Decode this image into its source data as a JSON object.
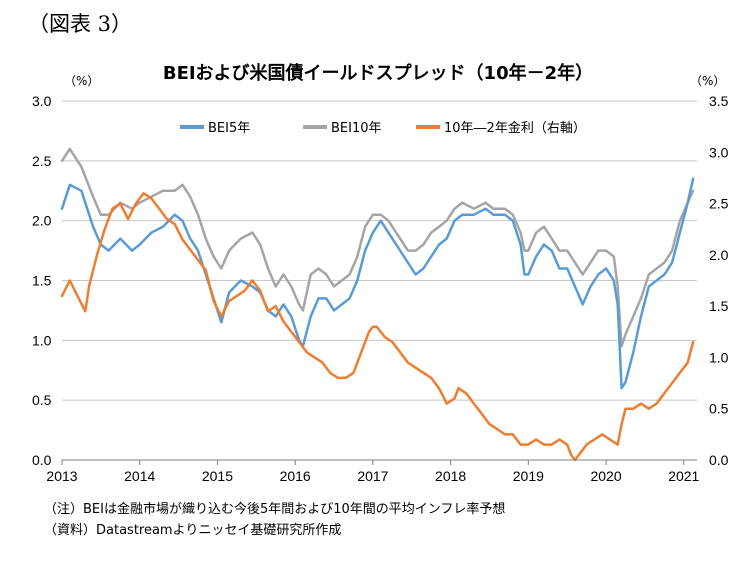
{
  "figure_label": "（図表 3）",
  "chart_data": {
    "type": "line",
    "title": "BEIおよび米国債イールドスプレッド（10年－2年）",
    "left_unit": "（%）",
    "right_unit": "（%）",
    "xlabel": "",
    "ylabel": "",
    "x_ticks": [
      "2013",
      "2014",
      "2015",
      "2016",
      "2017",
      "2018",
      "2019",
      "2020",
      "2021"
    ],
    "x_range": [
      2013.0,
      2021.17
    ],
    "ylim_left": [
      0.0,
      3.0
    ],
    "y_ticks_left": [
      "0.0",
      "0.5",
      "1.0",
      "1.5",
      "2.0",
      "2.5",
      "3.0"
    ],
    "ylim_right": [
      0.0,
      3.5
    ],
    "y_ticks_right": [
      "0.0",
      "0.5",
      "1.0",
      "1.5",
      "2.0",
      "2.5",
      "3.0",
      "3.5"
    ],
    "grid": true,
    "legend_position": "top",
    "series": [
      {
        "name": "BEI5年",
        "axis": "left",
        "color": "#5b9bd5",
        "points": [
          [
            2013.0,
            2.1
          ],
          [
            2013.1,
            2.3
          ],
          [
            2013.25,
            2.25
          ],
          [
            2013.4,
            1.95
          ],
          [
            2013.5,
            1.8
          ],
          [
            2013.6,
            1.75
          ],
          [
            2013.75,
            1.85
          ],
          [
            2013.9,
            1.75
          ],
          [
            2014.0,
            1.8
          ],
          [
            2014.15,
            1.9
          ],
          [
            2014.3,
            1.95
          ],
          [
            2014.45,
            2.05
          ],
          [
            2014.55,
            2.0
          ],
          [
            2014.65,
            1.85
          ],
          [
            2014.75,
            1.75
          ],
          [
            2014.85,
            1.55
          ],
          [
            2014.95,
            1.35
          ],
          [
            2015.05,
            1.15
          ],
          [
            2015.15,
            1.4
          ],
          [
            2015.3,
            1.5
          ],
          [
            2015.45,
            1.45
          ],
          [
            2015.55,
            1.4
          ],
          [
            2015.65,
            1.25
          ],
          [
            2015.75,
            1.2
          ],
          [
            2015.85,
            1.3
          ],
          [
            2015.95,
            1.2
          ],
          [
            2016.05,
            1.0
          ],
          [
            2016.1,
            0.95
          ],
          [
            2016.2,
            1.2
          ],
          [
            2016.3,
            1.35
          ],
          [
            2016.4,
            1.35
          ],
          [
            2016.5,
            1.25
          ],
          [
            2016.6,
            1.3
          ],
          [
            2016.7,
            1.35
          ],
          [
            2016.8,
            1.5
          ],
          [
            2016.9,
            1.75
          ],
          [
            2017.0,
            1.9
          ],
          [
            2017.1,
            2.0
          ],
          [
            2017.2,
            1.9
          ],
          [
            2017.35,
            1.75
          ],
          [
            2017.45,
            1.65
          ],
          [
            2017.55,
            1.55
          ],
          [
            2017.65,
            1.6
          ],
          [
            2017.75,
            1.7
          ],
          [
            2017.85,
            1.8
          ],
          [
            2017.95,
            1.85
          ],
          [
            2018.05,
            2.0
          ],
          [
            2018.15,
            2.05
          ],
          [
            2018.3,
            2.05
          ],
          [
            2018.45,
            2.1
          ],
          [
            2018.55,
            2.05
          ],
          [
            2018.7,
            2.05
          ],
          [
            2018.8,
            2.0
          ],
          [
            2018.9,
            1.8
          ],
          [
            2018.95,
            1.55
          ],
          [
            2019.0,
            1.55
          ],
          [
            2019.1,
            1.7
          ],
          [
            2019.2,
            1.8
          ],
          [
            2019.3,
            1.75
          ],
          [
            2019.4,
            1.6
          ],
          [
            2019.5,
            1.6
          ],
          [
            2019.6,
            1.45
          ],
          [
            2019.7,
            1.3
          ],
          [
            2019.8,
            1.45
          ],
          [
            2019.9,
            1.55
          ],
          [
            2020.0,
            1.6
          ],
          [
            2020.1,
            1.5
          ],
          [
            2020.15,
            1.3
          ],
          [
            2020.2,
            0.6
          ],
          [
            2020.25,
            0.65
          ],
          [
            2020.35,
            0.9
          ],
          [
            2020.45,
            1.2
          ],
          [
            2020.55,
            1.45
          ],
          [
            2020.65,
            1.5
          ],
          [
            2020.75,
            1.55
          ],
          [
            2020.85,
            1.65
          ],
          [
            2020.95,
            1.9
          ],
          [
            2021.05,
            2.15
          ],
          [
            2021.12,
            2.35
          ]
        ]
      },
      {
        "name": "BEI10年",
        "axis": "left",
        "color": "#a5a5a5",
        "points": [
          [
            2013.0,
            2.5
          ],
          [
            2013.1,
            2.6
          ],
          [
            2013.25,
            2.45
          ],
          [
            2013.4,
            2.2
          ],
          [
            2013.5,
            2.05
          ],
          [
            2013.6,
            2.05
          ],
          [
            2013.75,
            2.15
          ],
          [
            2013.9,
            2.1
          ],
          [
            2014.0,
            2.15
          ],
          [
            2014.15,
            2.2
          ],
          [
            2014.3,
            2.25
          ],
          [
            2014.45,
            2.25
          ],
          [
            2014.55,
            2.3
          ],
          [
            2014.65,
            2.2
          ],
          [
            2014.75,
            2.05
          ],
          [
            2014.85,
            1.85
          ],
          [
            2014.95,
            1.7
          ],
          [
            2015.05,
            1.6
          ],
          [
            2015.15,
            1.75
          ],
          [
            2015.3,
            1.85
          ],
          [
            2015.45,
            1.9
          ],
          [
            2015.55,
            1.8
          ],
          [
            2015.65,
            1.6
          ],
          [
            2015.75,
            1.45
          ],
          [
            2015.85,
            1.55
          ],
          [
            2015.95,
            1.45
          ],
          [
            2016.05,
            1.3
          ],
          [
            2016.1,
            1.25
          ],
          [
            2016.2,
            1.55
          ],
          [
            2016.3,
            1.6
          ],
          [
            2016.4,
            1.55
          ],
          [
            2016.5,
            1.45
          ],
          [
            2016.6,
            1.5
          ],
          [
            2016.7,
            1.55
          ],
          [
            2016.8,
            1.7
          ],
          [
            2016.9,
            1.95
          ],
          [
            2017.0,
            2.05
          ],
          [
            2017.1,
            2.05
          ],
          [
            2017.2,
            2.0
          ],
          [
            2017.35,
            1.85
          ],
          [
            2017.45,
            1.75
          ],
          [
            2017.55,
            1.75
          ],
          [
            2017.65,
            1.8
          ],
          [
            2017.75,
            1.9
          ],
          [
            2017.85,
            1.95
          ],
          [
            2017.95,
            2.0
          ],
          [
            2018.05,
            2.1
          ],
          [
            2018.15,
            2.15
          ],
          [
            2018.3,
            2.1
          ],
          [
            2018.45,
            2.15
          ],
          [
            2018.55,
            2.1
          ],
          [
            2018.7,
            2.1
          ],
          [
            2018.8,
            2.05
          ],
          [
            2018.9,
            1.9
          ],
          [
            2018.95,
            1.75
          ],
          [
            2019.0,
            1.75
          ],
          [
            2019.1,
            1.9
          ],
          [
            2019.2,
            1.95
          ],
          [
            2019.3,
            1.85
          ],
          [
            2019.4,
            1.75
          ],
          [
            2019.5,
            1.75
          ],
          [
            2019.6,
            1.65
          ],
          [
            2019.7,
            1.55
          ],
          [
            2019.8,
            1.65
          ],
          [
            2019.9,
            1.75
          ],
          [
            2020.0,
            1.75
          ],
          [
            2020.1,
            1.7
          ],
          [
            2020.15,
            1.45
          ],
          [
            2020.2,
            0.95
          ],
          [
            2020.25,
            1.05
          ],
          [
            2020.35,
            1.2
          ],
          [
            2020.45,
            1.35
          ],
          [
            2020.55,
            1.55
          ],
          [
            2020.65,
            1.6
          ],
          [
            2020.75,
            1.65
          ],
          [
            2020.85,
            1.75
          ],
          [
            2020.95,
            2.0
          ],
          [
            2021.05,
            2.15
          ],
          [
            2021.12,
            2.25
          ]
        ]
      },
      {
        "name": "10年―2年金利（右軸）",
        "axis": "right",
        "color": "#ed7d31",
        "points": [
          [
            2013.0,
            1.6
          ],
          [
            2013.1,
            1.75
          ],
          [
            2013.2,
            1.6
          ],
          [
            2013.3,
            1.45
          ],
          [
            2013.35,
            1.7
          ],
          [
            2013.45,
            2.0
          ],
          [
            2013.55,
            2.25
          ],
          [
            2013.65,
            2.45
          ],
          [
            2013.75,
            2.5
          ],
          [
            2013.85,
            2.35
          ],
          [
            2013.95,
            2.5
          ],
          [
            2014.05,
            2.6
          ],
          [
            2014.15,
            2.55
          ],
          [
            2014.25,
            2.45
          ],
          [
            2014.35,
            2.35
          ],
          [
            2014.45,
            2.3
          ],
          [
            2014.55,
            2.15
          ],
          [
            2014.65,
            2.05
          ],
          [
            2014.75,
            1.95
          ],
          [
            2014.85,
            1.85
          ],
          [
            2014.95,
            1.55
          ],
          [
            2015.05,
            1.4
          ],
          [
            2015.15,
            1.55
          ],
          [
            2015.25,
            1.6
          ],
          [
            2015.35,
            1.65
          ],
          [
            2015.45,
            1.75
          ],
          [
            2015.55,
            1.65
          ],
          [
            2015.65,
            1.45
          ],
          [
            2015.75,
            1.5
          ],
          [
            2015.85,
            1.35
          ],
          [
            2015.95,
            1.25
          ],
          [
            2016.05,
            1.15
          ],
          [
            2016.15,
            1.05
          ],
          [
            2016.25,
            1.0
          ],
          [
            2016.35,
            0.95
          ],
          [
            2016.45,
            0.85
          ],
          [
            2016.55,
            0.8
          ],
          [
            2016.65,
            0.8
          ],
          [
            2016.75,
            0.85
          ],
          [
            2016.85,
            1.05
          ],
          [
            2016.95,
            1.25
          ],
          [
            2017.0,
            1.3
          ],
          [
            2017.05,
            1.3
          ],
          [
            2017.15,
            1.2
          ],
          [
            2017.25,
            1.15
          ],
          [
            2017.35,
            1.05
          ],
          [
            2017.45,
            0.95
          ],
          [
            2017.55,
            0.9
          ],
          [
            2017.65,
            0.85
          ],
          [
            2017.75,
            0.8
          ],
          [
            2017.85,
            0.7
          ],
          [
            2017.95,
            0.55
          ],
          [
            2018.05,
            0.6
          ],
          [
            2018.1,
            0.7
          ],
          [
            2018.2,
            0.65
          ],
          [
            2018.3,
            0.55
          ],
          [
            2018.4,
            0.45
          ],
          [
            2018.5,
            0.35
          ],
          [
            2018.6,
            0.3
          ],
          [
            2018.7,
            0.25
          ],
          [
            2018.8,
            0.25
          ],
          [
            2018.9,
            0.15
          ],
          [
            2019.0,
            0.15
          ],
          [
            2019.1,
            0.2
          ],
          [
            2019.2,
            0.15
          ],
          [
            2019.3,
            0.15
          ],
          [
            2019.4,
            0.2
          ],
          [
            2019.5,
            0.15
          ],
          [
            2019.55,
            0.05
          ],
          [
            2019.6,
            0.0
          ],
          [
            2019.65,
            0.05
          ],
          [
            2019.75,
            0.15
          ],
          [
            2019.85,
            0.2
          ],
          [
            2019.95,
            0.25
          ],
          [
            2020.05,
            0.2
          ],
          [
            2020.15,
            0.15
          ],
          [
            2020.2,
            0.35
          ],
          [
            2020.25,
            0.5
          ],
          [
            2020.35,
            0.5
          ],
          [
            2020.45,
            0.55
          ],
          [
            2020.55,
            0.5
          ],
          [
            2020.65,
            0.55
          ],
          [
            2020.75,
            0.65
          ],
          [
            2020.85,
            0.75
          ],
          [
            2020.95,
            0.85
          ],
          [
            2021.05,
            0.95
          ],
          [
            2021.12,
            1.15
          ]
        ]
      }
    ]
  },
  "notes": {
    "note1": "（注）BEIは金融市場が織り込む今後5年間および10年間の平均インフレ率予想",
    "note2": "（資料）Datastreamよりニッセイ基礎研究所作成"
  }
}
